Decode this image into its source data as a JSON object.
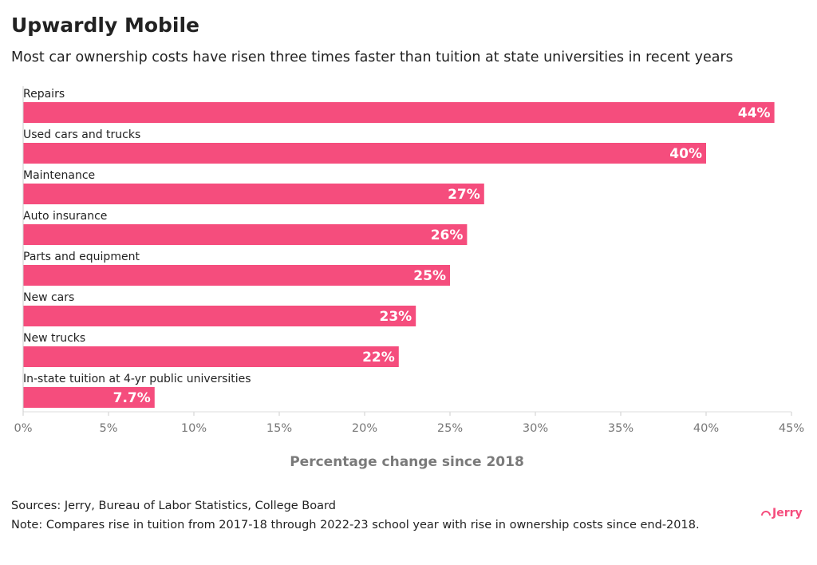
{
  "chart_data": {
    "type": "hbar",
    "title": "Upwardly Mobile",
    "subtitle": "Most car ownership costs have risen three times faster than tuition at state universities in recent years",
    "categories": [
      "Repairs",
      "Used cars and trucks",
      "Maintenance",
      "Auto insurance",
      "Parts and equipment",
      "New cars",
      "New trucks",
      "In-state tuition at 4-yr public universities"
    ],
    "values": [
      44,
      40,
      27,
      26,
      25,
      23,
      22,
      7.7
    ],
    "value_labels": [
      "44%",
      "40%",
      "27%",
      "26%",
      "25%",
      "23%",
      "22%",
      "7.7%"
    ],
    "color": "#f54d7d",
    "xlim": [
      0,
      45
    ],
    "xticks": [
      {
        "value": 0,
        "label": "0%"
      },
      {
        "value": 5,
        "label": "5%"
      },
      {
        "value": 10,
        "label": "10%"
      },
      {
        "value": 15,
        "label": "15%"
      },
      {
        "value": 20,
        "label": "20%"
      },
      {
        "value": 25,
        "label": "25%"
      },
      {
        "value": 30,
        "label": "30%"
      },
      {
        "value": 35,
        "label": "35%"
      },
      {
        "value": 40,
        "label": "40%"
      },
      {
        "value": 45,
        "label": "45%"
      }
    ],
    "xlabel": "Percentage change since 2018",
    "source": "Sources: Jerry, Bureau of Labor Statistics, College Board",
    "note": "Note: Compares rise in tuition from 2017-18 through 2022-23 school year with rise in ownership costs since end-2018.",
    "logo": "Jerry"
  }
}
